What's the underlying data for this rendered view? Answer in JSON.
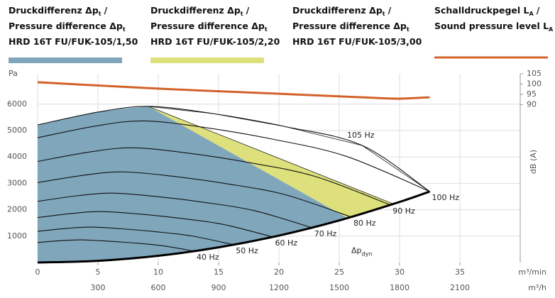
{
  "chart_data": {
    "type": "line",
    "xlim": [
      0,
      40
    ],
    "xticks": [
      0,
      5,
      10,
      15,
      20,
      25,
      30,
      35
    ],
    "xlabel": "m³/min",
    "x2lim": [
      0,
      2400
    ],
    "x2ticks": [
      300,
      600,
      900,
      1200,
      1500,
      1800,
      2100
    ],
    "x2label": "m³/h",
    "ylim": [
      0,
      7150
    ],
    "yticks": [
      1000,
      2000,
      3000,
      4000,
      5000,
      6000
    ],
    "ylabel": "Pa",
    "y2lim": [
      13.3,
      105
    ],
    "y2ticks": [
      90,
      95,
      100,
      105
    ],
    "y2label": "dB (A)",
    "grid": true,
    "series": [
      {
        "name": [
          {
            "text": "Druckdifferenz Δp",
            "sub": "t",
            "end": "/"
          },
          {
            "text": "Pressure difference Δp",
            "sub": "t"
          },
          {
            "text": "HRD 16T FU/FUK-105/1,50"
          }
        ],
        "kind": "area",
        "color": "#80a6bc",
        "x": [
          0,
          5,
          10,
          15,
          20,
          25.7,
          9.2,
          7,
          5,
          2.5,
          0
        ],
        "values": [
          0,
          64,
          255,
          574,
          1020,
          1684,
          5914,
          5830,
          5700,
          5480,
          5215
        ]
      },
      {
        "name": [
          {
            "text": "Druckdifferenz Δp",
            "sub": "t",
            "end": "/"
          },
          {
            "text": "Pressure difference Δp",
            "sub": "t"
          },
          {
            "text": "HRD 16T FU/FUK-105/2,20"
          }
        ],
        "kind": "area",
        "color": "#dde07b",
        "x": [
          9.2,
          25.7,
          27.5,
          29.5
        ],
        "values": [
          5914,
          1684,
          1928,
          2219
        ]
      },
      {
        "name": [
          {
            "text": "Druckdifferenz Δp",
            "sub": "t",
            "end": "/"
          },
          {
            "text": "Pressure difference Δp",
            "sub": "t"
          },
          {
            "text": "HRD 16T FU/FUK-105/3,00"
          }
        ],
        "kind": "area",
        "color": "#ffffff",
        "x": [
          9.2,
          14.5,
          20.4,
          26.9,
          32.5,
          29.5
        ],
        "values": [
          5914,
          5645,
          5161,
          4435,
          2690,
          2219
        ]
      },
      {
        "name": [
          {
            "text": "Schalldruckpegel L",
            "sub": "A",
            "end": "/"
          },
          {
            "text": "Sound pressure level L",
            "sub": "A"
          }
        ],
        "kind": "line",
        "axis": "y2",
        "color": "#d2622a",
        "x": [
          0,
          10,
          20,
          28,
          30,
          32.5
        ],
        "values": [
          100.9,
          97.8,
          95.3,
          93.3,
          92.9,
          93.6
        ]
      }
    ],
    "curves": [
      {
        "label": "40 Hz",
        "x": [
          0,
          1.92,
          3.52,
          5.52,
          7.76,
          10.24,
          13
        ],
        "values": [
          757,
          827,
          858,
          819,
          749,
          643,
          430
        ]
      },
      {
        "label": "50 Hz",
        "x": [
          0,
          2.4,
          4.4,
          6.9,
          9.7,
          12.8,
          16.25
        ],
        "values": [
          1183,
          1293,
          1341,
          1280,
          1170,
          1005,
          673
        ]
      },
      {
        "label": "60 Hz",
        "x": [
          0,
          2.88,
          5.28,
          8.28,
          11.64,
          15.36,
          19.5
        ],
        "values": [
          1703,
          1861,
          1931,
          1843,
          1685,
          1447,
          968
        ]
      },
      {
        "label": "70 Hz",
        "x": [
          0,
          3.36,
          6.16,
          9.66,
          13.58,
          17.92,
          22.75
        ],
        "values": [
          2318,
          2533,
          2629,
          2509,
          2293,
          1970,
          1318
        ]
      },
      {
        "label": "80 Hz",
        "x": [
          0,
          3.84,
          7.04,
          11.04,
          15.52,
          20.48,
          26
        ],
        "values": [
          3027,
          3309,
          3434,
          3277,
          2995,
          2573,
          1722
        ]
      },
      {
        "label": "90 Hz",
        "x": [
          0,
          4.32,
          7.92,
          12.42,
          17.46,
          23.04,
          29.25
        ],
        "values": [
          3831,
          4188,
          4346,
          4147,
          3791,
          3256,
          2179
        ]
      },
      {
        "label": "100 Hz",
        "x": [
          0,
          4.8,
          8.8,
          13.8,
          19.4,
          25.6,
          32.5
        ],
        "values": [
          4730,
          5170,
          5365,
          5120,
          4680,
          4020,
          2690
        ]
      },
      {
        "label": "105 Hz",
        "x": [
          0,
          5,
          9.2,
          14.5,
          20.4,
          26.9,
          32.5
        ],
        "values": [
          5215,
          5700,
          5914,
          5645,
          5161,
          4435,
          2690
        ]
      }
    ],
    "system_curve": {
      "x": [
        0,
        5,
        10,
        15,
        20,
        25,
        30,
        32.5
      ],
      "values": [
        0,
        64,
        255,
        574,
        1020,
        1594,
        2295,
        2690
      ]
    },
    "annotation": {
      "text": "Δp",
      "sub": "dyn",
      "x": 26,
      "y": 450
    }
  }
}
